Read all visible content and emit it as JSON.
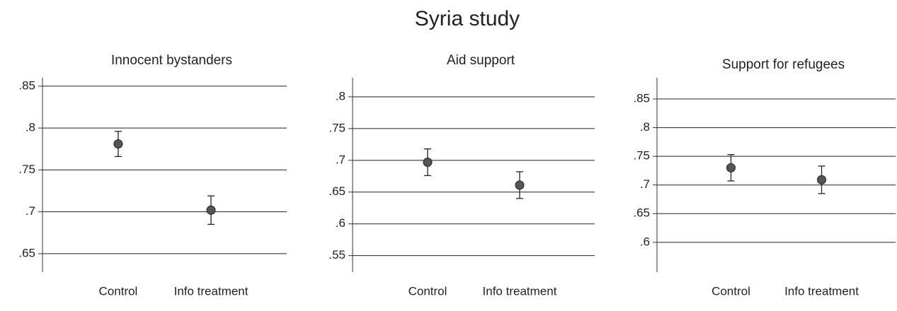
{
  "title": "Syria study",
  "chart_data": [
    {
      "type": "errorbar",
      "title": "Innocent bystanders",
      "categories": [
        "Control",
        "Info treatment"
      ],
      "values": [
        0.781,
        0.702
      ],
      "errors": [
        0.015,
        0.017
      ],
      "color": "#555555",
      "ylim": [
        0.628,
        0.86
      ],
      "yticks": [
        {
          "value": 0.65,
          "label": ".65"
        },
        {
          "value": 0.7,
          "label": ".7"
        },
        {
          "value": 0.75,
          "label": ".75"
        },
        {
          "value": 0.8,
          "label": ".8"
        },
        {
          "value": 0.85,
          "label": ".85"
        }
      ],
      "grid": true
    },
    {
      "type": "errorbar",
      "title": "Aid support",
      "categories": [
        "Control",
        "Info treatment"
      ],
      "values": [
        0.697,
        0.661
      ],
      "errors": [
        0.021,
        0.021
      ],
      "color": "#555555",
      "ylim": [
        0.524,
        0.83
      ],
      "yticks": [
        {
          "value": 0.55,
          "label": ".55"
        },
        {
          "value": 0.6,
          "label": ".6"
        },
        {
          "value": 0.65,
          "label": ".65"
        },
        {
          "value": 0.7,
          "label": ".7"
        },
        {
          "value": 0.75,
          "label": ".75"
        },
        {
          "value": 0.8,
          "label": ".8"
        }
      ],
      "grid": true
    },
    {
      "type": "errorbar",
      "title": "Support for refugees",
      "categories": [
        "Control",
        "Info treatment"
      ],
      "values": [
        0.73,
        0.709
      ],
      "errors": [
        0.023,
        0.024
      ],
      "color": "#555555",
      "ylim": [
        0.548,
        0.887
      ],
      "yticks": [
        {
          "value": 0.6,
          "label": ".6"
        },
        {
          "value": 0.65,
          "label": ".65"
        },
        {
          "value": 0.7,
          "label": ".7"
        },
        {
          "value": 0.75,
          "label": ".75"
        },
        {
          "value": 0.8,
          "label": ".8"
        },
        {
          "value": 0.85,
          "label": ".85"
        }
      ],
      "grid": true
    }
  ]
}
